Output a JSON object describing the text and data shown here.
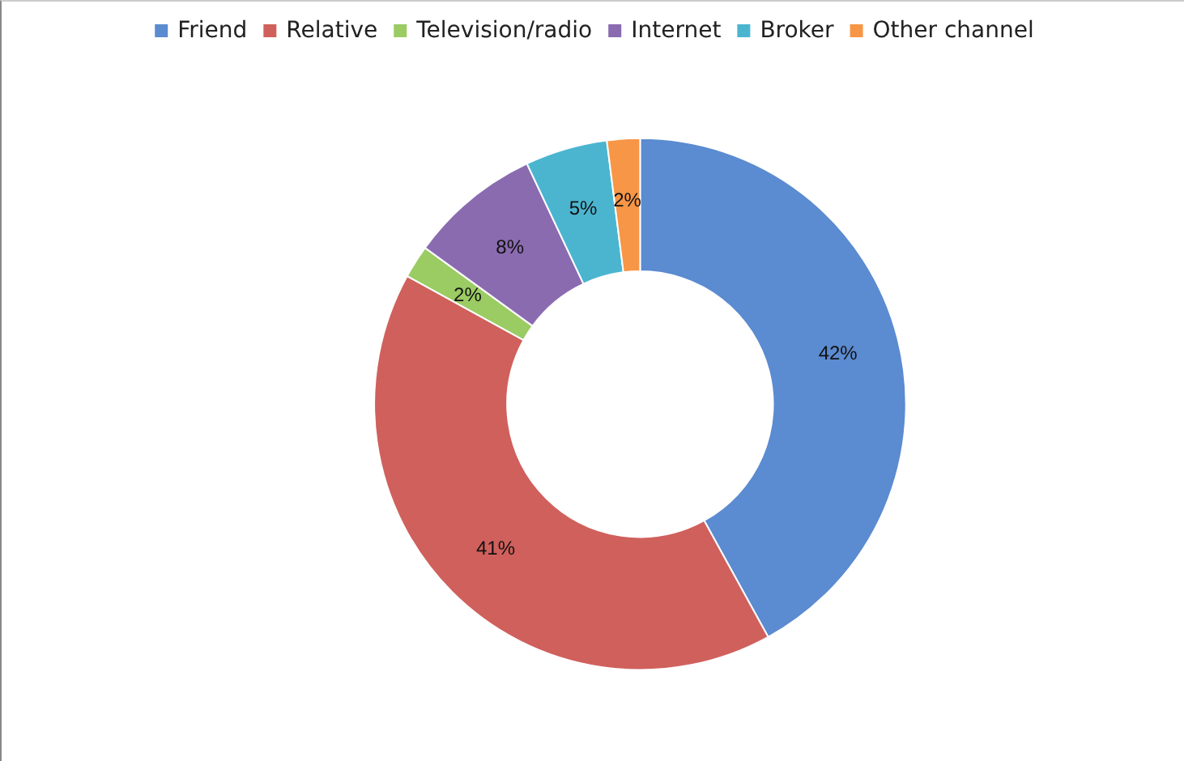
{
  "chart_data": {
    "type": "donut",
    "categories": [
      "Friend",
      "Relative",
      "Television/radio",
      "Internet",
      "Broker",
      "Other channel"
    ],
    "values": [
      42,
      41,
      2,
      8,
      5,
      2
    ],
    "colors": [
      "#5b8bd0",
      "#d0605c",
      "#9bcb63",
      "#8a6bb0",
      "#4bb5d0",
      "#f79646"
    ],
    "value_labels": [
      "42%",
      "41%",
      "2%",
      "8%",
      "5%",
      "2%"
    ],
    "legend": "top"
  }
}
